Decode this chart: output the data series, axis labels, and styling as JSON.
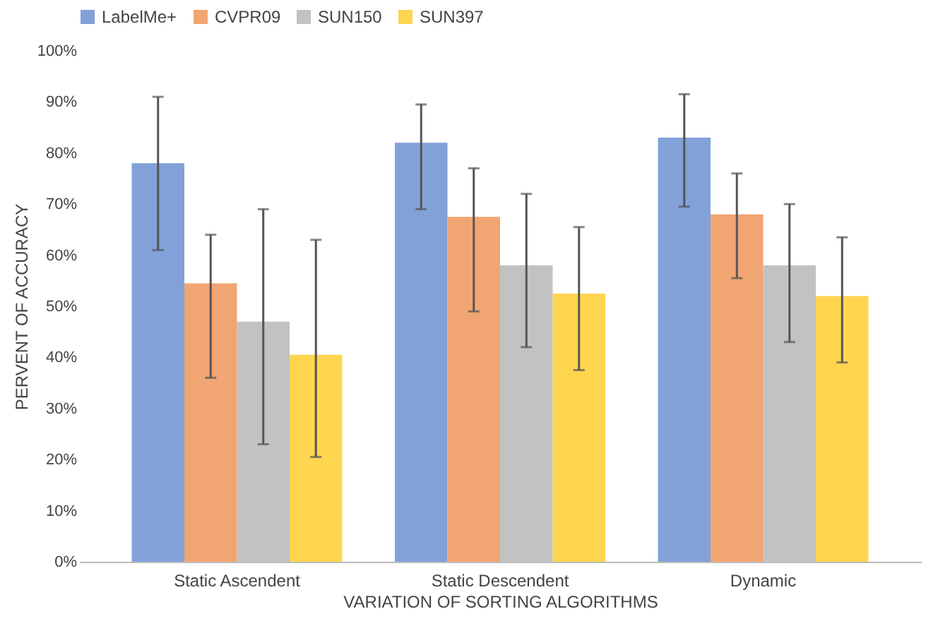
{
  "chart_data": {
    "type": "bar",
    "xlabel": "VARIATION OF SORTING ALGORITHMS",
    "ylabel": "PERVENT OF ACCURACY",
    "categories": [
      "Static Ascendent",
      "Static Descendent",
      "Dynamic"
    ],
    "series": [
      {
        "name": "LabelMe+",
        "color": "#7b9cd6",
        "values": [
          78,
          82,
          83
        ],
        "errors": [
          [
            61,
            91
          ],
          [
            69,
            89.5
          ],
          [
            69.5,
            91.5
          ]
        ]
      },
      {
        "name": "CVPR09",
        "color": "#f0a06a",
        "values": [
          54.5,
          67.5,
          68
        ],
        "errors": [
          [
            36,
            64
          ],
          [
            49,
            77
          ],
          [
            55.5,
            76
          ]
        ]
      },
      {
        "name": "SUN150",
        "color": "#bfbfbf",
        "values": [
          47,
          58,
          58
        ],
        "errors": [
          [
            23,
            69
          ],
          [
            42,
            72
          ],
          [
            43,
            70
          ]
        ]
      },
      {
        "name": "SUN397",
        "color": "#ffd347",
        "values": [
          40.5,
          52.5,
          52
        ],
        "errors": [
          [
            20.5,
            63
          ],
          [
            37.5,
            65.5
          ],
          [
            39,
            63.5
          ]
        ]
      }
    ],
    "ylim": [
      0,
      100
    ],
    "yticks": [
      {
        "value": 0,
        "label": "0%"
      },
      {
        "value": 10,
        "label": "10%"
      },
      {
        "value": 20,
        "label": "20%"
      },
      {
        "value": 30,
        "label": "30%"
      },
      {
        "value": 40,
        "label": "40%"
      },
      {
        "value": 50,
        "label": "50%"
      },
      {
        "value": 60,
        "label": "60%"
      },
      {
        "value": 70,
        "label": "70%"
      },
      {
        "value": 80,
        "label": "80%"
      },
      {
        "value": 90,
        "label": "90%"
      },
      {
        "value": 100,
        "label": "100%"
      }
    ],
    "grid": false,
    "legend": "top"
  }
}
